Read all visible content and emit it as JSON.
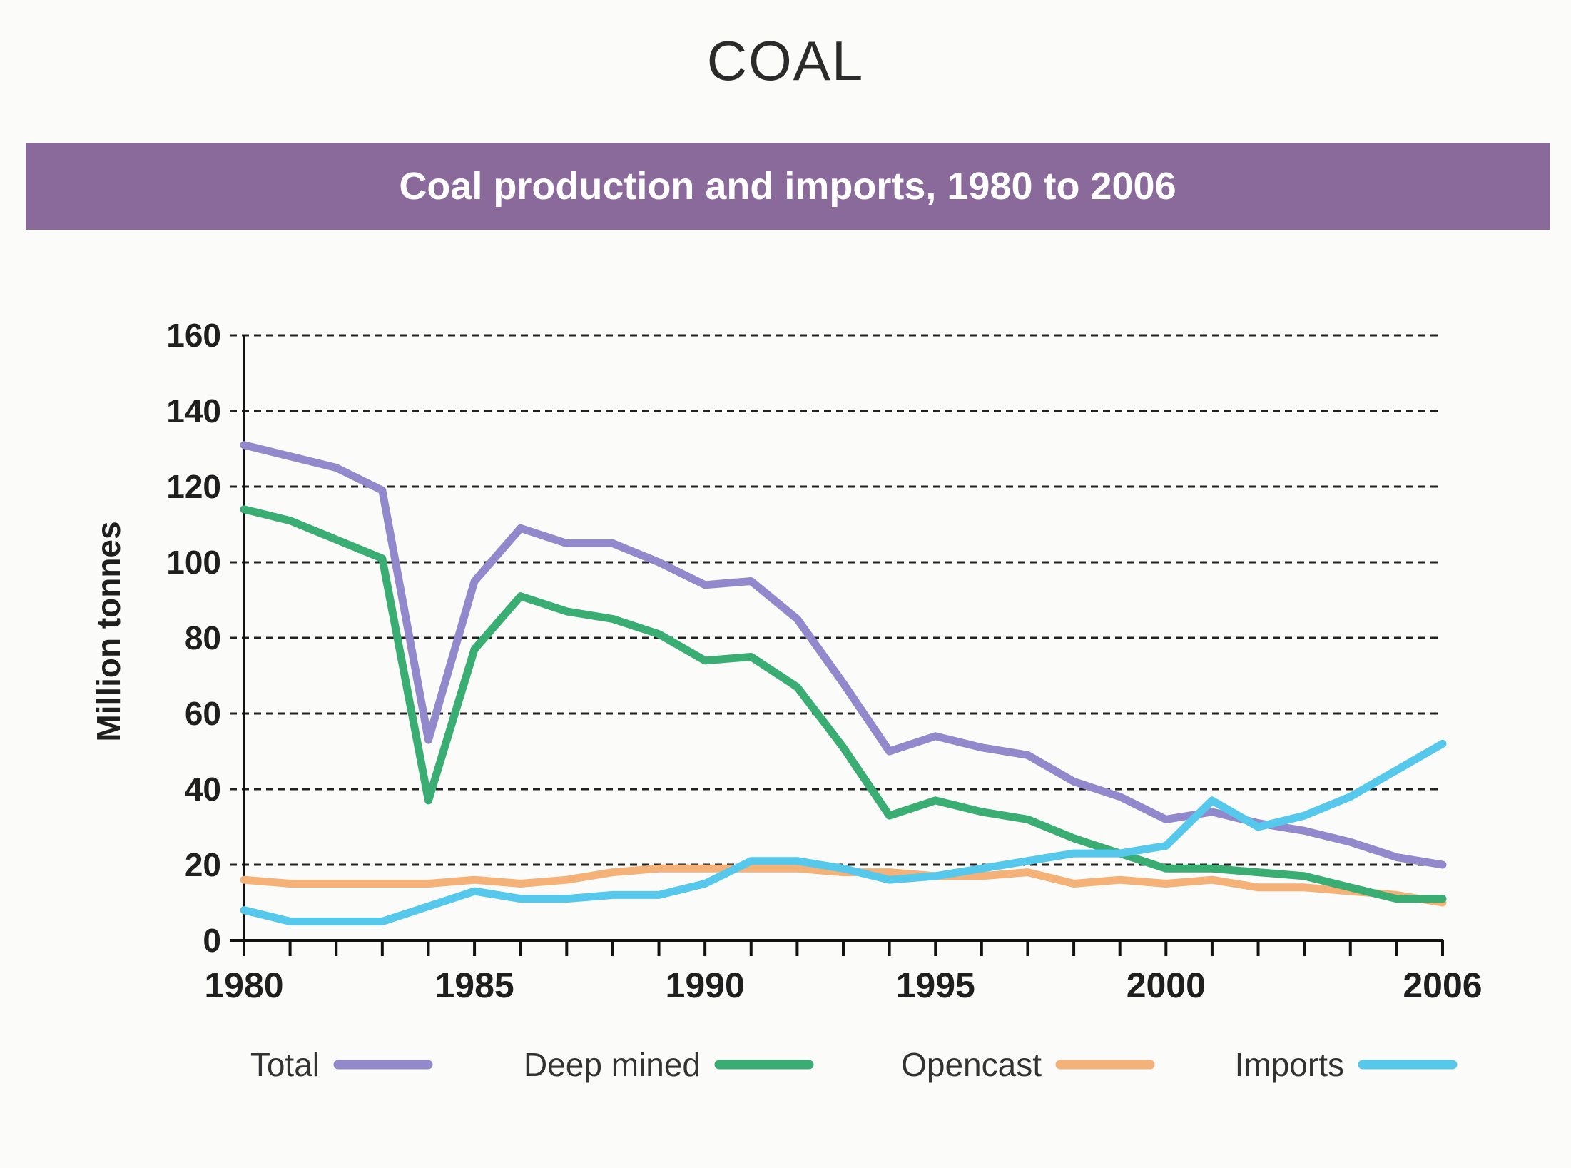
{
  "page": {
    "title": "COAL",
    "banner": "Coal production and imports, 1980 to 2006"
  },
  "colors": {
    "banner": "#8a6a9a",
    "total": "#9288cc",
    "deep_mined": "#3aae72",
    "opencast": "#f4b278",
    "imports": "#55c8ec"
  },
  "chart_data": {
    "type": "line",
    "title": "Coal production and imports, 1980 to 2006",
    "xlabel": "",
    "ylabel": "Million tonnes",
    "xlim": [
      1980,
      2006
    ],
    "ylim": [
      0,
      160
    ],
    "yticks": [
      0,
      20,
      40,
      60,
      80,
      100,
      120,
      140,
      160
    ],
    "xtick_labels": [
      "1980",
      "1985",
      "1990",
      "1995",
      "2000",
      "2006"
    ],
    "grid": "horizontal dashed",
    "legend": "bottom",
    "x": [
      1980,
      1981,
      1982,
      1983,
      1984,
      1985,
      1986,
      1987,
      1988,
      1989,
      1990,
      1991,
      1992,
      1993,
      1994,
      1995,
      1996,
      1997,
      1998,
      1999,
      2000,
      2001,
      2002,
      2003,
      2004,
      2005,
      2006
    ],
    "series": [
      {
        "name": "Total",
        "color_key": "total",
        "values": [
          131,
          128,
          125,
          119,
          53,
          95,
          109,
          105,
          105,
          100,
          94,
          95,
          85,
          68,
          50,
          54,
          51,
          49,
          42,
          38,
          32,
          34,
          31,
          29,
          26,
          22,
          20
        ]
      },
      {
        "name": "Deep mined",
        "color_key": "deep_mined",
        "values": [
          114,
          111,
          106,
          101,
          37,
          77,
          91,
          87,
          85,
          81,
          74,
          75,
          67,
          51,
          33,
          37,
          34,
          32,
          27,
          23,
          19,
          19,
          18,
          17,
          14,
          11,
          11
        ]
      },
      {
        "name": "Opencast",
        "color_key": "opencast",
        "values": [
          16,
          15,
          15,
          15,
          15,
          16,
          15,
          16,
          18,
          19,
          19,
          19,
          19,
          18,
          18,
          17,
          17,
          18,
          15,
          16,
          15,
          16,
          14,
          14,
          13,
          12,
          10
        ]
      },
      {
        "name": "Imports",
        "color_key": "imports",
        "values": [
          8,
          5,
          5,
          5,
          9,
          13,
          11,
          11,
          12,
          12,
          15,
          21,
          21,
          19,
          16,
          17,
          19,
          21,
          23,
          23,
          25,
          37,
          30,
          33,
          38,
          45,
          52
        ]
      }
    ]
  }
}
